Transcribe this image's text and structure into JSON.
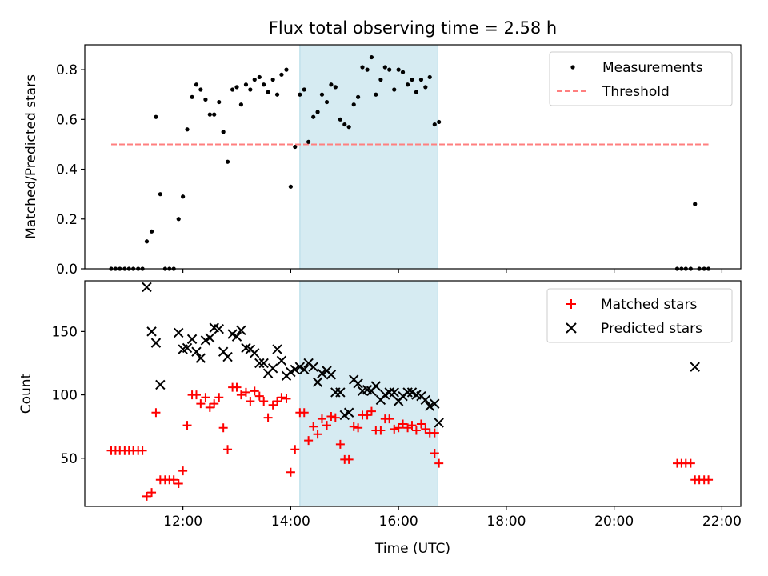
{
  "figure": {
    "title": "Flux total observing time = 2.58 h"
  },
  "chart_data": [
    {
      "type": "scatter",
      "panel": "top",
      "title": "Flux total observing time = 2.58 h",
      "xlabel": "",
      "ylabel": "Matched/Predicted stars",
      "xlim": [
        10.18,
        22.35
      ],
      "ylim": [
        0.0,
        0.9
      ],
      "x_ticks": [
        12,
        14,
        16,
        18,
        20,
        22
      ],
      "x_tick_labels": [
        "",
        "",
        "",
        "",
        "",
        ""
      ],
      "y_ticks": [
        0.0,
        0.2,
        0.4,
        0.6,
        0.8
      ],
      "y_tick_labels": [
        "0.0",
        "0.2",
        "0.4",
        "0.6",
        "0.8"
      ],
      "grid": false,
      "legend_position": "top-right",
      "shaded_region": {
        "x_start": 14.17,
        "x_end": 16.73,
        "color": "#add8e6"
      },
      "threshold": {
        "name": "Threshold",
        "value": 0.5,
        "x_start": 10.67,
        "x_end": 21.75,
        "color": "#ff7f7f"
      },
      "series": [
        {
          "name": "Measurements",
          "color": "#000000",
          "marker": "dot",
          "points": [
            [
              10.67,
              0.0
            ],
            [
              10.75,
              0.0
            ],
            [
              10.83,
              0.0
            ],
            [
              10.92,
              0.0
            ],
            [
              11.0,
              0.0
            ],
            [
              11.08,
              0.0
            ],
            [
              11.17,
              0.0
            ],
            [
              11.25,
              0.0
            ],
            [
              11.33,
              0.11
            ],
            [
              11.42,
              0.15
            ],
            [
              11.5,
              0.61
            ],
            [
              11.58,
              0.3
            ],
            [
              11.67,
              0.0
            ],
            [
              11.75,
              0.0
            ],
            [
              11.83,
              0.0
            ],
            [
              11.92,
              0.2
            ],
            [
              12.0,
              0.29
            ],
            [
              12.08,
              0.56
            ],
            [
              12.17,
              0.69
            ],
            [
              12.25,
              0.74
            ],
            [
              12.33,
              0.72
            ],
            [
              12.42,
              0.68
            ],
            [
              12.5,
              0.62
            ],
            [
              12.58,
              0.62
            ],
            [
              12.67,
              0.67
            ],
            [
              12.75,
              0.55
            ],
            [
              12.83,
              0.43
            ],
            [
              12.92,
              0.72
            ],
            [
              13.0,
              0.73
            ],
            [
              13.08,
              0.66
            ],
            [
              13.17,
              0.74
            ],
            [
              13.25,
              0.72
            ],
            [
              13.33,
              0.76
            ],
            [
              13.42,
              0.77
            ],
            [
              13.5,
              0.74
            ],
            [
              13.58,
              0.71
            ],
            [
              13.67,
              0.76
            ],
            [
              13.75,
              0.7
            ],
            [
              13.83,
              0.78
            ],
            [
              13.92,
              0.8
            ],
            [
              14.0,
              0.33
            ],
            [
              14.08,
              0.49
            ],
            [
              14.17,
              0.7
            ],
            [
              14.25,
              0.72
            ],
            [
              14.33,
              0.51
            ],
            [
              14.42,
              0.61
            ],
            [
              14.5,
              0.63
            ],
            [
              14.58,
              0.7
            ],
            [
              14.67,
              0.67
            ],
            [
              14.75,
              0.74
            ],
            [
              14.83,
              0.73
            ],
            [
              14.92,
              0.6
            ],
            [
              15.0,
              0.58
            ],
            [
              15.08,
              0.57
            ],
            [
              15.17,
              0.66
            ],
            [
              15.25,
              0.69
            ],
            [
              15.33,
              0.81
            ],
            [
              15.42,
              0.8
            ],
            [
              15.5,
              0.85
            ],
            [
              15.58,
              0.7
            ],
            [
              15.67,
              0.76
            ],
            [
              15.75,
              0.81
            ],
            [
              15.83,
              0.8
            ],
            [
              15.92,
              0.72
            ],
            [
              16.0,
              0.8
            ],
            [
              16.08,
              0.79
            ],
            [
              16.17,
              0.74
            ],
            [
              16.25,
              0.76
            ],
            [
              16.33,
              0.71
            ],
            [
              16.42,
              0.76
            ],
            [
              16.5,
              0.73
            ],
            [
              16.58,
              0.77
            ],
            [
              16.67,
              0.58
            ],
            [
              16.75,
              0.59
            ],
            [
              21.17,
              0.0
            ],
            [
              21.25,
              0.0
            ],
            [
              21.33,
              0.0
            ],
            [
              21.42,
              0.0
            ],
            [
              21.5,
              0.26
            ],
            [
              21.58,
              0.0
            ],
            [
              21.67,
              0.0
            ],
            [
              21.75,
              0.0
            ]
          ]
        }
      ]
    },
    {
      "type": "scatter",
      "panel": "bottom",
      "xlabel": "Time (UTC)",
      "ylabel": "Count",
      "xlim": [
        10.18,
        22.35
      ],
      "ylim": [
        12,
        190
      ],
      "x_ticks": [
        12,
        14,
        16,
        18,
        20,
        22
      ],
      "x_tick_labels": [
        "12:00",
        "14:00",
        "16:00",
        "18:00",
        "20:00",
        "22:00"
      ],
      "y_ticks": [
        50,
        100,
        150
      ],
      "y_tick_labels": [
        "50",
        "100",
        "150"
      ],
      "grid": false,
      "legend_position": "top-right",
      "shaded_region": {
        "x_start": 14.17,
        "x_end": 16.73,
        "color": "#add8e6"
      },
      "series": [
        {
          "name": "Matched stars",
          "color": "#ff0000",
          "marker": "plus",
          "points": [
            [
              10.67,
              56
            ],
            [
              10.75,
              56
            ],
            [
              10.83,
              56
            ],
            [
              10.92,
              56
            ],
            [
              11.0,
              56
            ],
            [
              11.08,
              56
            ],
            [
              11.17,
              56
            ],
            [
              11.25,
              56
            ],
            [
              11.33,
              20
            ],
            [
              11.42,
              23
            ],
            [
              11.5,
              86
            ],
            [
              11.58,
              33
            ],
            [
              11.67,
              33
            ],
            [
              11.75,
              33
            ],
            [
              11.83,
              33
            ],
            [
              11.92,
              30
            ],
            [
              12.0,
              40
            ],
            [
              12.08,
              76
            ],
            [
              12.17,
              100
            ],
            [
              12.25,
              100
            ],
            [
              12.33,
              93
            ],
            [
              12.42,
              98
            ],
            [
              12.5,
              90
            ],
            [
              12.58,
              93
            ],
            [
              12.67,
              98
            ],
            [
              12.75,
              74
            ],
            [
              12.83,
              57
            ],
            [
              12.92,
              106
            ],
            [
              13.0,
              106
            ],
            [
              13.08,
              100
            ],
            [
              13.17,
              102
            ],
            [
              13.25,
              95
            ],
            [
              13.33,
              103
            ],
            [
              13.42,
              99
            ],
            [
              13.5,
              95
            ],
            [
              13.58,
              82
            ],
            [
              13.67,
              92
            ],
            [
              13.75,
              95
            ],
            [
              13.83,
              98
            ],
            [
              13.92,
              97
            ],
            [
              14.0,
              39
            ],
            [
              14.08,
              57
            ],
            [
              14.17,
              86
            ],
            [
              14.25,
              86
            ],
            [
              14.33,
              64
            ],
            [
              14.42,
              75
            ],
            [
              14.5,
              69
            ],
            [
              14.58,
              81
            ],
            [
              14.67,
              76
            ],
            [
              14.75,
              83
            ],
            [
              14.83,
              82
            ],
            [
              14.92,
              61
            ],
            [
              15.0,
              49
            ],
            [
              15.08,
              49
            ],
            [
              15.17,
              75
            ],
            [
              15.25,
              74
            ],
            [
              15.33,
              84
            ],
            [
              15.42,
              84
            ],
            [
              15.5,
              87
            ],
            [
              15.58,
              72
            ],
            [
              15.67,
              72
            ],
            [
              15.75,
              81
            ],
            [
              15.83,
              81
            ],
            [
              15.92,
              73
            ],
            [
              16.0,
              74
            ],
            [
              16.08,
              77
            ],
            [
              16.17,
              74
            ],
            [
              16.25,
              76
            ],
            [
              16.33,
              72
            ],
            [
              16.42,
              77
            ],
            [
              16.5,
              73
            ],
            [
              16.58,
              70
            ],
            [
              16.67,
              70
            ],
            [
              16.67,
              54
            ],
            [
              16.75,
              46
            ],
            [
              21.17,
              46
            ],
            [
              21.25,
              46
            ],
            [
              21.33,
              46
            ],
            [
              21.42,
              46
            ],
            [
              21.5,
              33
            ],
            [
              21.58,
              33
            ],
            [
              21.67,
              33
            ],
            [
              21.75,
              33
            ]
          ]
        },
        {
          "name": "Predicted stars",
          "color": "#000000",
          "marker": "x",
          "points": [
            [
              11.33,
              185
            ],
            [
              11.42,
              150
            ],
            [
              11.5,
              141
            ],
            [
              11.58,
              108
            ],
            [
              11.92,
              149
            ],
            [
              12.0,
              136
            ],
            [
              12.08,
              137
            ],
            [
              12.17,
              144
            ],
            [
              12.25,
              134
            ],
            [
              12.33,
              129
            ],
            [
              12.42,
              143
            ],
            [
              12.5,
              145
            ],
            [
              12.58,
              153
            ],
            [
              12.67,
              152
            ],
            [
              12.75,
              134
            ],
            [
              12.83,
              130
            ],
            [
              12.92,
              148
            ],
            [
              13.0,
              146
            ],
            [
              13.08,
              151
            ],
            [
              13.17,
              137
            ],
            [
              13.25,
              136
            ],
            [
              13.33,
              133
            ],
            [
              13.42,
              125
            ],
            [
              13.5,
              125
            ],
            [
              13.58,
              117
            ],
            [
              13.67,
              121
            ],
            [
              13.75,
              136
            ],
            [
              13.83,
              127
            ],
            [
              13.92,
              115
            ],
            [
              14.0,
              118
            ],
            [
              14.08,
              120
            ],
            [
              14.17,
              122
            ],
            [
              14.25,
              120
            ],
            [
              14.33,
              125
            ],
            [
              14.42,
              122
            ],
            [
              14.5,
              110
            ],
            [
              14.58,
              117
            ],
            [
              14.67,
              119
            ],
            [
              14.75,
              116
            ],
            [
              14.83,
              102
            ],
            [
              14.92,
              102
            ],
            [
              15.0,
              84
            ],
            [
              15.08,
              86
            ],
            [
              15.17,
              112
            ],
            [
              15.25,
              109
            ],
            [
              15.33,
              103
            ],
            [
              15.42,
              104
            ],
            [
              15.5,
              103
            ],
            [
              15.58,
              107
            ],
            [
              15.67,
              96
            ],
            [
              15.75,
              100
            ],
            [
              15.83,
              102
            ],
            [
              15.92,
              102
            ],
            [
              16.0,
              95
            ],
            [
              16.08,
              99
            ],
            [
              16.17,
              102
            ],
            [
              16.25,
              102
            ],
            [
              16.33,
              100
            ],
            [
              16.42,
              99
            ],
            [
              16.5,
              96
            ],
            [
              16.58,
              91
            ],
            [
              16.67,
              93
            ],
            [
              16.75,
              78
            ],
            [
              21.5,
              122
            ]
          ]
        }
      ]
    }
  ]
}
